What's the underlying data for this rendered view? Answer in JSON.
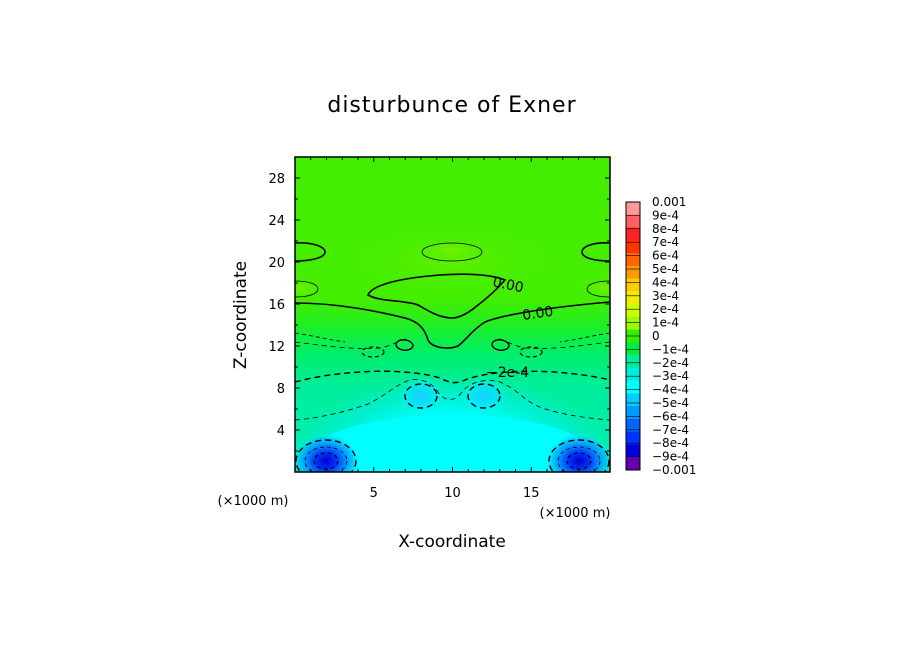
{
  "chart_data": {
    "type": "heatmap",
    "title": "disturbunce of Exner",
    "xlabel": "X-coordinate",
    "ylabel": "Z-coordinate",
    "x_unit": "(×1000 m)",
    "z_unit": "(×1000 m)",
    "xlim": [
      0,
      20
    ],
    "zlim": [
      0,
      30
    ],
    "x_ticks": [
      "5",
      "10",
      "15"
    ],
    "z_ticks": [
      "4",
      "8",
      "12",
      "16",
      "20",
      "24",
      "28"
    ],
    "colorbar": {
      "labels": [
        "0.001",
        "9e-4",
        "8e-4",
        "7e-4",
        "6e-4",
        "5e-4",
        "4e-4",
        "3e-4",
        "2e-4",
        "1e-4",
        "0",
        "−1e-4",
        "−2e-4",
        "−3e-4",
        "−4e-4",
        "−5e-4",
        "−6e-4",
        "−7e-4",
        "−8e-4",
        "−9e-4",
        "−0.001"
      ],
      "colors": [
        "#ff9999",
        "#ff6060",
        "#ff2222",
        "#ff3300",
        "#ff6600",
        "#ff9900",
        "#ffcc00",
        "#eeee00",
        "#ccff00",
        "#99ff00",
        "#33ee00",
        "#00ee44",
        "#00ee99",
        "#00eedd",
        "#00ffff",
        "#00ccff",
        "#0099ff",
        "#0066ff",
        "#0033ff",
        "#0000dd",
        "#6600aa"
      ]
    },
    "contour_labels": [
      "0.00",
      "0.00",
      "−2e-4"
    ],
    "field": {
      "background_value": 5e-05,
      "features": [
        {
          "x": 2,
          "z": 1,
          "amp": -0.0009,
          "sx": 1.2,
          "sz": 1.1
        },
        {
          "x": 18,
          "z": 1,
          "amp": -0.0009,
          "sx": 1.2,
          "sz": 1.1
        },
        {
          "x": 10,
          "z": 3.5,
          "amp": -0.00018,
          "sx": 5.5,
          "sz": 5.0
        },
        {
          "x": 8,
          "z": 7,
          "amp": -8e-05,
          "sx": 0.9,
          "sz": 1.0
        },
        {
          "x": 12,
          "z": 7,
          "amp": -8e-05,
          "sx": 0.9,
          "sz": 1.0
        },
        {
          "x": 10,
          "z": 17,
          "amp": 4e-05,
          "sx": 3.0,
          "sz": 1.5
        },
        {
          "x": 10,
          "z": 20.5,
          "amp": 4e-05,
          "sx": 2.0,
          "sz": 1.3
        },
        {
          "x": 0.5,
          "z": 17.5,
          "amp": 4e-05,
          "sx": 1.4,
          "sz": 1.1
        },
        {
          "x": 19.5,
          "z": 17.5,
          "amp": 4e-05,
          "sx": 1.4,
          "sz": 1.1
        }
      ]
    }
  }
}
